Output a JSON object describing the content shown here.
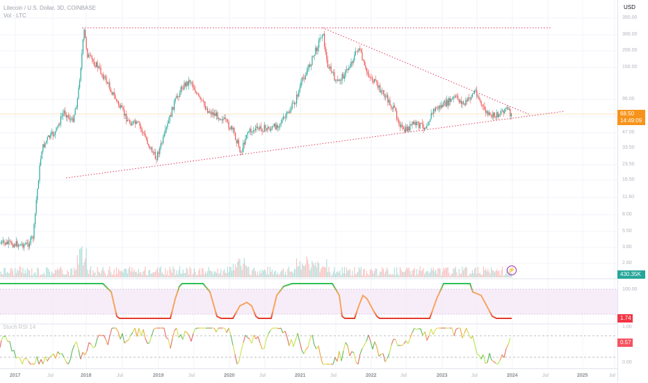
{
  "legend": {
    "symbol": "Litecoin / U.S. Dollar, 3D, COINBASE",
    "volume": "Vol · LTC"
  },
  "oscillator_title": "Stoch RSI 14",
  "currency": "USD",
  "price_scale": [
    "350.00",
    "300.00",
    "200.00",
    "150.00",
    "95.00",
    "70.00",
    "47.00",
    "33.50",
    "23.50",
    "16.50",
    "11.60",
    "8.00",
    "5.50",
    "3.80",
    "2.80"
  ],
  "indicator_scale_1": "100.00",
  "indicator_scale_2": [
    "1.00",
    "0.00"
  ],
  "tags": {
    "last_price": "68.50",
    "countdown": "14:49:09",
    "volume": "430.35K",
    "indicator_1": "1.74",
    "indicator_2": "0.57"
  },
  "time_axis": [
    "2017",
    "Jul",
    "2018",
    "Jul",
    "2019",
    "Jul",
    "2020",
    "Jul",
    "2021",
    "Jul",
    "2022",
    "Jul",
    "2023",
    "Jul",
    "2024",
    "Jul",
    "2025",
    "Jul"
  ],
  "colors": {
    "up": "#26a69a",
    "down": "#ef5350",
    "trendline": "#e0385a",
    "last_price": "#f7931a",
    "volume_tag": "#26a69a",
    "red_tag": "#f23645",
    "pink_tag": "#f7525f",
    "band_fill": "#f3e5f5"
  }
}
